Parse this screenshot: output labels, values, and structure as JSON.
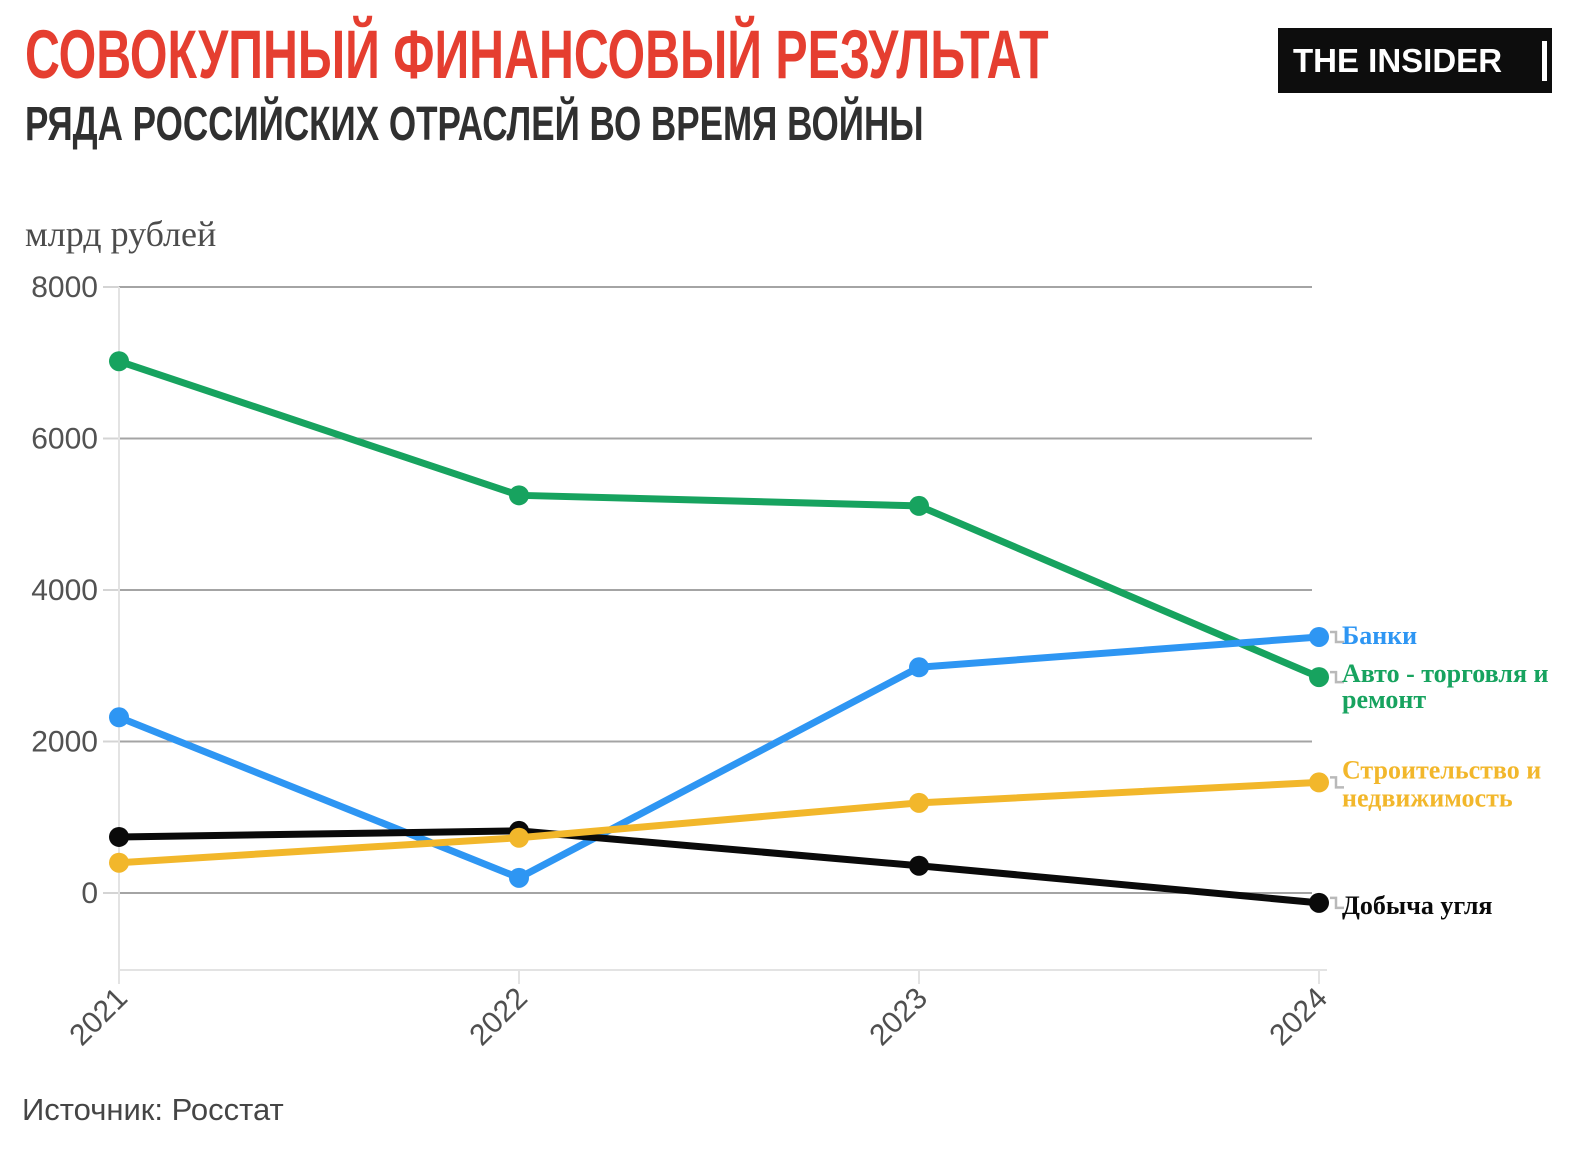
{
  "header": {
    "title": "СОВОКУПНЫЙ ФИНАНСОВЫЙ РЕЗУЛЬТАТ",
    "subtitle": "РЯДА РОССИЙСКИХ ОТРАСЛЕЙ ВО ВРЕМЯ ВОЙНЫ",
    "title_color": "#e53e30",
    "subtitle_color": "#303030"
  },
  "logo": {
    "text": "THE INSIDER",
    "background_color": "#0d0d0d",
    "text_color": "#ffffff"
  },
  "source": {
    "label": "Источник: Росстат"
  },
  "chart_data": {
    "type": "line",
    "unit_label": "млрд рублей",
    "categories": [
      "2021",
      "2022",
      "2023",
      "2024"
    ],
    "series": [
      {
        "name": "Авто - торговля и ремонт",
        "label_lines": [
          "Авто - торговля и",
          "ремонт"
        ],
        "color": "#17a35f",
        "values": [
          7020,
          5250,
          5110,
          2850
        ],
        "label_line_offsets": [
          -4,
          22
        ]
      },
      {
        "name": "Банки",
        "label_lines": [
          "Банки"
        ],
        "color": "#2e96f3",
        "values": [
          2320,
          200,
          2980,
          3380
        ],
        "label_line_offsets": [
          -2
        ]
      },
      {
        "name": "Добыча угля",
        "label_lines": [
          "Добыча угля"
        ],
        "color": "#0a0a0a",
        "values": [
          740,
          820,
          360,
          -130
        ],
        "label_line_offsets": [
          2
        ]
      },
      {
        "name": "Строительство и недвижимость",
        "label_lines": [
          "Строительство и",
          "недвижимость"
        ],
        "color": "#f2b72b",
        "values": [
          400,
          730,
          1190,
          1460
        ],
        "label_line_offsets": [
          -13,
          15
        ]
      }
    ],
    "yticks": [
      0,
      2000,
      4000,
      6000,
      8000
    ],
    "ylim": [
      -1000,
      8000
    ],
    "grid": "horizontal",
    "legend": "direct-labels-at-line-ends"
  }
}
